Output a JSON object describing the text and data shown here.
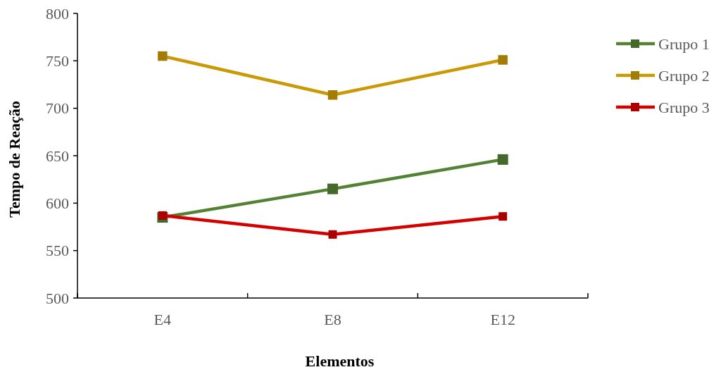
{
  "chart_data": {
    "type": "line",
    "xlabel": "Elementos",
    "ylabel": "Tempo de Reação",
    "categories": [
      "E4",
      "E8",
      "E12"
    ],
    "series": [
      {
        "name": "Grupo 1",
        "color": "#548235",
        "values": [
          585,
          615,
          646
        ]
      },
      {
        "name": "Grupo 2",
        "color": "#c99a06",
        "values": [
          755,
          714,
          751
        ]
      },
      {
        "name": "Grupo 3",
        "color": "#d40000",
        "values": [
          587,
          567,
          586
        ]
      }
    ],
    "ylim": [
      500,
      800
    ],
    "yticks": [
      500,
      550,
      600,
      650,
      700,
      750,
      800
    ],
    "grid": false,
    "legend": "top right",
    "marker": "square",
    "line_style": "solid"
  }
}
